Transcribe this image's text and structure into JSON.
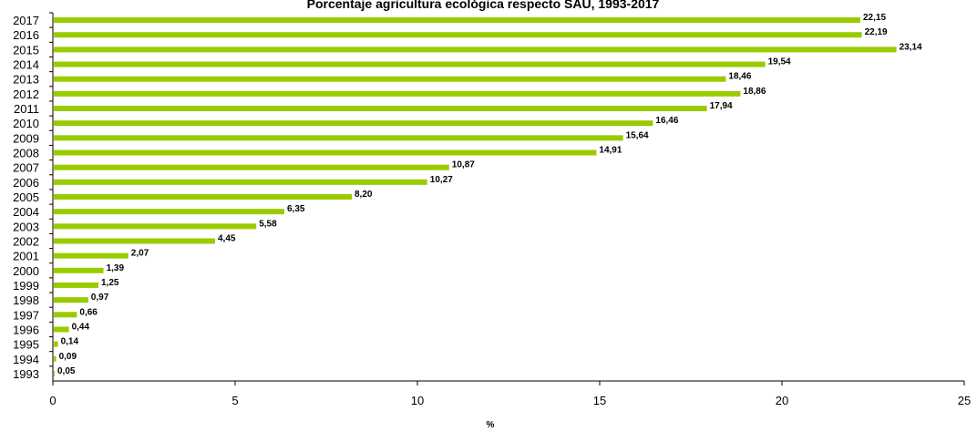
{
  "chart_data": {
    "type": "bar",
    "orientation": "horizontal",
    "title": "Porcentaje agricultura ecológica respecto SAU, 1993-2017",
    "xlabel": "%",
    "ylabel": "",
    "xlim": [
      0,
      25
    ],
    "x_ticks": [
      "0",
      "5",
      "10",
      "15",
      "20",
      "25"
    ],
    "categories": [
      "2017",
      "2016",
      "2015",
      "2014",
      "2013",
      "2012",
      "2011",
      "2010",
      "2009",
      "2008",
      "2007",
      "2006",
      "2005",
      "2004",
      "2003",
      "2002",
      "2001",
      "2000",
      "1999",
      "1998",
      "1997",
      "1996",
      "1995",
      "1994",
      "1993"
    ],
    "values": [
      22.15,
      22.19,
      23.14,
      19.54,
      18.46,
      18.86,
      17.94,
      16.46,
      15.64,
      14.91,
      10.87,
      10.27,
      8.2,
      6.35,
      5.58,
      4.45,
      2.07,
      1.39,
      1.25,
      0.97,
      0.66,
      0.44,
      0.14,
      0.09,
      0.05
    ],
    "data_labels": [
      "22,15",
      "22,19",
      "23,14",
      "19,54",
      "18,46",
      "18,86",
      "17,94",
      "16,46",
      "15,64",
      "14,91",
      "10,87",
      "10,27",
      "8,20",
      "6,35",
      "5,58",
      "4,45",
      "2,07",
      "1,39",
      "1,25",
      "0,97",
      "0,66",
      "0,44",
      "0,14",
      "0,09",
      "0,05"
    ],
    "grid": false,
    "legend": "none",
    "bar_color": "#99cc00"
  }
}
